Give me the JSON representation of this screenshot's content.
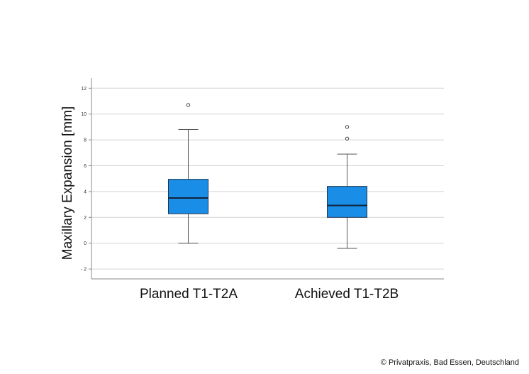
{
  "chart_data": {
    "type": "boxplot",
    "title": "",
    "xlabel": "",
    "ylabel": "Maxillary Expansion [mm]",
    "ylim": [
      -2.8,
      12.8
    ],
    "yticks": [
      -2,
      0,
      2,
      4,
      6,
      8,
      10,
      12
    ],
    "grid": true,
    "categories": [
      "Planned T1-T2A",
      "Achieved T1-T2B"
    ],
    "series": [
      {
        "name": "Planned T1-T2A",
        "whisker_low": 0,
        "q1": 2.28,
        "median": 3.5,
        "q3": 4.95,
        "whisker_high": 8.8,
        "outliers": [
          10.7
        ]
      },
      {
        "name": "Achieved T1-T2B",
        "whisker_low": -0.4,
        "q1": 2.0,
        "median": 2.92,
        "q3": 4.4,
        "whisker_high": 6.9,
        "outliers": [
          9.0,
          8.1
        ]
      }
    ],
    "colors": {
      "box_fill": "#1a8de6",
      "box_stroke": "#1f3550",
      "grid": "#d4d4d4",
      "axis": "#888888"
    }
  },
  "credit": "© Privatpraxis, Bad Essen, Deutschland"
}
